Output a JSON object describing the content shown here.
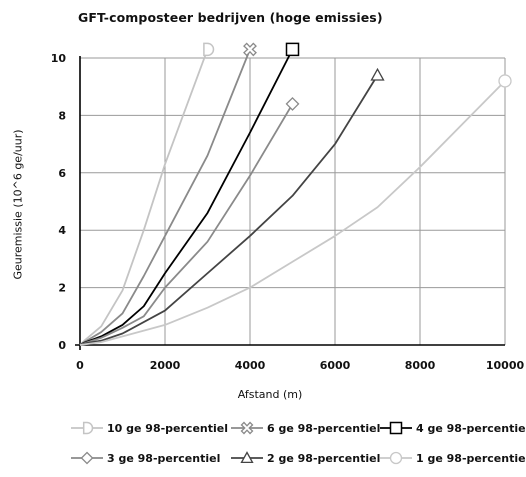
{
  "chart_data": {
    "type": "line",
    "title": "GFT-composteer bedrijven (hoge emissies)",
    "xlabel": "Afstand (m)",
    "ylabel": "Geuremissie (10^6 ge/uur)",
    "xlim": [
      0,
      10000
    ],
    "ylim": [
      0,
      10
    ],
    "xticks": [
      "0",
      "2000",
      "4000",
      "6000",
      "8000",
      "10000"
    ],
    "yticks": [
      "0",
      "2",
      "4",
      "6",
      "8",
      "10"
    ],
    "grid": true,
    "legend_position": "bottom",
    "series": [
      {
        "name": "10 ge 98-percentiel",
        "marker": "d-half",
        "color": "#c4c4c4",
        "x": [
          0,
          100,
          500,
          1000,
          1500,
          2000,
          2500,
          3000
        ],
        "y": [
          0,
          0.15,
          0.65,
          1.9,
          4.0,
          6.3,
          8.3,
          10.3
        ]
      },
      {
        "name": "6 ge 98-percentiel",
        "marker": "cross",
        "color": "#8a8a8a",
        "x": [
          0,
          100,
          500,
          1000,
          1500,
          2000,
          3000,
          4000
        ],
        "y": [
          0,
          0.1,
          0.45,
          1.1,
          2.4,
          3.8,
          6.6,
          10.3
        ]
      },
      {
        "name": "4 ge 98-percentiel",
        "marker": "square",
        "color": "#000000",
        "x": [
          0,
          100,
          500,
          1000,
          1500,
          2000,
          3000,
          4000,
          5000
        ],
        "y": [
          0,
          0.08,
          0.3,
          0.7,
          1.35,
          2.5,
          4.6,
          7.4,
          10.3
        ]
      },
      {
        "name": "3 ge 98-percentiel",
        "marker": "diamond",
        "color": "#8a8a8a",
        "x": [
          0,
          100,
          500,
          1000,
          1500,
          2000,
          3000,
          4000,
          5000
        ],
        "y": [
          0,
          0.06,
          0.25,
          0.6,
          1.0,
          2.0,
          3.6,
          5.9,
          8.4
        ]
      },
      {
        "name": "2 ge 98-percentiel",
        "marker": "triangle",
        "color": "#444444",
        "x": [
          0,
          100,
          500,
          1000,
          2000,
          3000,
          4000,
          5000,
          6000,
          7000
        ],
        "y": [
          0,
          0.05,
          0.15,
          0.4,
          1.2,
          2.5,
          3.8,
          5.2,
          7.0,
          9.4
        ]
      },
      {
        "name": "1 ge 98-percentiel",
        "marker": "circle",
        "color": "#c8c8c8",
        "x": [
          0,
          500,
          1000,
          2000,
          3000,
          4000,
          5000,
          6000,
          7000,
          8000,
          9000,
          10000
        ],
        "y": [
          0,
          0.1,
          0.3,
          0.7,
          1.3,
          2.0,
          2.9,
          3.8,
          4.8,
          6.2,
          7.7,
          9.2
        ]
      }
    ]
  }
}
